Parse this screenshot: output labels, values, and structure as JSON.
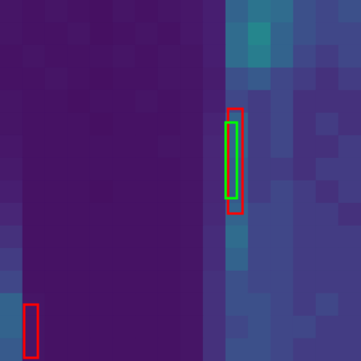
{
  "chart_data": {
    "type": "heatmap",
    "cells": [
      [
        0.08,
        0.07,
        0.08,
        0.07,
        0.06,
        0.08,
        0.07,
        0.08,
        0.09,
        0.12,
        0.45,
        0.55,
        0.5,
        0.35,
        0.3,
        0.35
      ],
      [
        0.08,
        0.07,
        0.07,
        0.08,
        0.06,
        0.07,
        0.08,
        0.07,
        0.09,
        0.12,
        0.5,
        0.65,
        0.45,
        0.35,
        0.3,
        0.3
      ],
      [
        0.07,
        0.08,
        0.07,
        0.07,
        0.07,
        0.08,
        0.07,
        0.08,
        0.08,
        0.12,
        0.5,
        0.6,
        0.45,
        0.3,
        0.25,
        0.3
      ],
      [
        0.07,
        0.07,
        0.08,
        0.07,
        0.06,
        0.07,
        0.07,
        0.08,
        0.08,
        0.11,
        0.35,
        0.4,
        0.3,
        0.25,
        0.2,
        0.25
      ],
      [
        0.08,
        0.07,
        0.07,
        0.06,
        0.07,
        0.07,
        0.08,
        0.07,
        0.08,
        0.12,
        0.3,
        0.25,
        0.3,
        0.2,
        0.2,
        0.2
      ],
      [
        0.08,
        0.07,
        0.07,
        0.07,
        0.06,
        0.07,
        0.07,
        0.07,
        0.08,
        0.14,
        0.45,
        0.25,
        0.3,
        0.2,
        0.25,
        0.2
      ],
      [
        0.09,
        0.07,
        0.07,
        0.07,
        0.07,
        0.07,
        0.07,
        0.08,
        0.08,
        0.15,
        0.45,
        0.25,
        0.3,
        0.2,
        0.2,
        0.25
      ],
      [
        0.1,
        0.07,
        0.07,
        0.07,
        0.07,
        0.07,
        0.07,
        0.07,
        0.08,
        0.15,
        0.4,
        0.25,
        0.25,
        0.2,
        0.25,
        0.25
      ],
      [
        0.12,
        0.07,
        0.07,
        0.07,
        0.06,
        0.07,
        0.07,
        0.07,
        0.08,
        0.15,
        0.4,
        0.25,
        0.3,
        0.25,
        0.2,
        0.25
      ],
      [
        0.15,
        0.07,
        0.07,
        0.07,
        0.07,
        0.07,
        0.07,
        0.07,
        0.08,
        0.16,
        0.45,
        0.3,
        0.3,
        0.25,
        0.25,
        0.2
      ],
      [
        0.2,
        0.07,
        0.07,
        0.07,
        0.07,
        0.07,
        0.07,
        0.07,
        0.08,
        0.18,
        0.5,
        0.3,
        0.3,
        0.25,
        0.25,
        0.25
      ],
      [
        0.25,
        0.07,
        0.07,
        0.07,
        0.07,
        0.07,
        0.07,
        0.07,
        0.08,
        0.18,
        0.45,
        0.3,
        0.3,
        0.25,
        0.25,
        0.25
      ],
      [
        0.3,
        0.07,
        0.07,
        0.07,
        0.07,
        0.07,
        0.07,
        0.07,
        0.08,
        0.2,
        0.35,
        0.3,
        0.3,
        0.25,
        0.25,
        0.25
      ],
      [
        0.45,
        0.08,
        0.07,
        0.07,
        0.07,
        0.07,
        0.07,
        0.07,
        0.08,
        0.2,
        0.35,
        0.35,
        0.3,
        0.25,
        0.3,
        0.25
      ],
      [
        0.45,
        0.08,
        0.07,
        0.07,
        0.07,
        0.07,
        0.07,
        0.07,
        0.08,
        0.2,
        0.3,
        0.35,
        0.3,
        0.3,
        0.25,
        0.25
      ],
      [
        0.4,
        0.08,
        0.07,
        0.07,
        0.07,
        0.07,
        0.07,
        0.07,
        0.08,
        0.2,
        0.35,
        0.35,
        0.3,
        0.25,
        0.25,
        0.25
      ]
    ],
    "color_range": [
      0,
      1
    ],
    "xlim": [
      0,
      448
    ],
    "ylim": [
      0,
      448
    ],
    "boxes": [
      {
        "x0": 283,
        "y0": 135,
        "x1": 301,
        "y1": 265,
        "color": "#ff0000"
      },
      {
        "x0": 30,
        "y0": 378,
        "x1": 47,
        "y1": 444,
        "color": "#ff0000"
      },
      {
        "x0": 280,
        "y0": 152,
        "x1": 294,
        "y1": 246,
        "color": "#00ff00"
      }
    ],
    "tick_labels": false,
    "grid": false
  }
}
